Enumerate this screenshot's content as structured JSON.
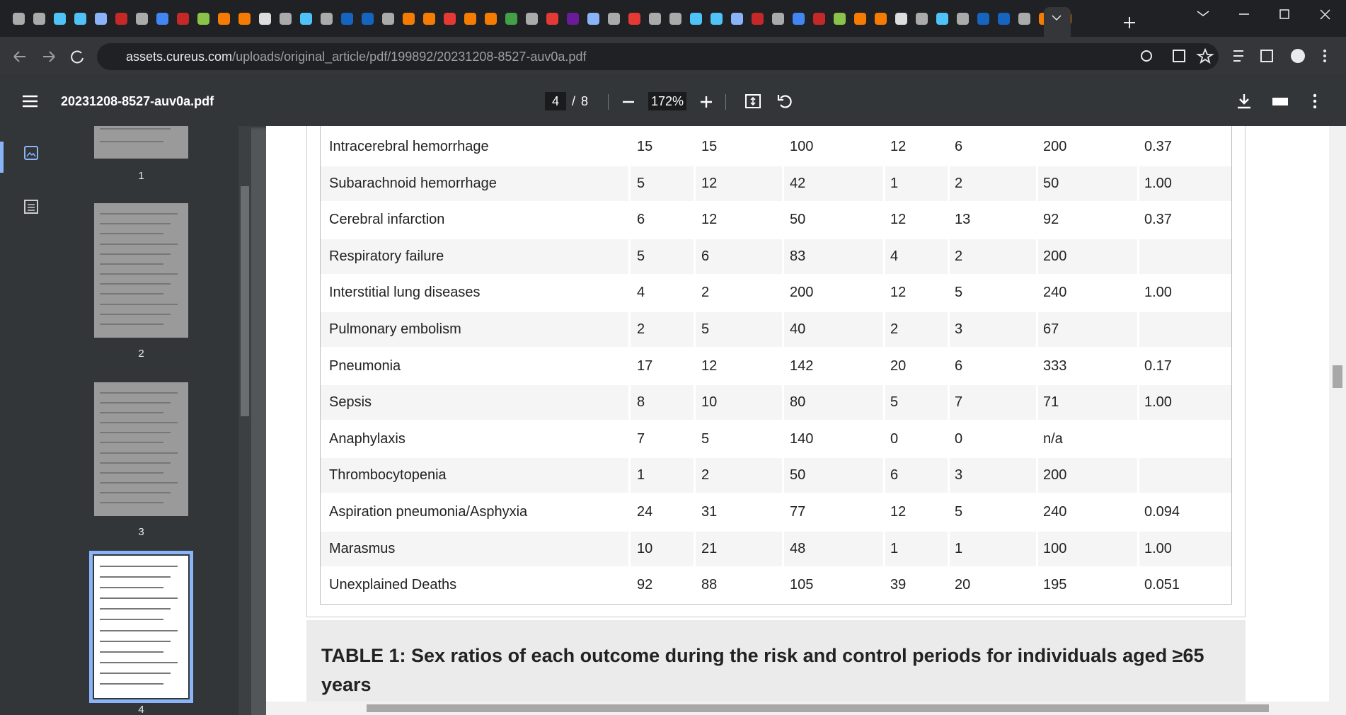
{
  "browser": {
    "url_host": "assets.cureus.com",
    "url_path": "/uploads/original_article/pdf/199892/20231208-8527-auv0a.pdf"
  },
  "viewer": {
    "file_name": "20231208-8527-auv0a.pdf",
    "page": "4",
    "page_separator": "/",
    "total_pages": "8",
    "zoom": "172%"
  },
  "thumbnails": [
    "1",
    "2",
    "3",
    "4"
  ],
  "table": {
    "rows": [
      [
        "Intracerebral hemorrhage",
        "15",
        "15",
        "100",
        "12",
        "6",
        "200",
        "0.37"
      ],
      [
        "Subarachnoid hemorrhage",
        "5",
        "12",
        "42",
        "1",
        "2",
        "50",
        "1.00"
      ],
      [
        "Cerebral infarction",
        "6",
        "12",
        "50",
        "12",
        "13",
        "92",
        "0.37"
      ],
      [
        "Respiratory failure",
        "5",
        "6",
        "83",
        "4",
        "2",
        "200",
        ""
      ],
      [
        "Interstitial lung diseases",
        "4",
        "2",
        "200",
        "12",
        "5",
        "240",
        "1.00"
      ],
      [
        "Pulmonary embolism",
        "2",
        "5",
        "40",
        "2",
        "3",
        "67",
        ""
      ],
      [
        "Pneumonia",
        "17",
        "12",
        "142",
        "20",
        "6",
        "333",
        "0.17"
      ],
      [
        "Sepsis",
        "8",
        "10",
        "80",
        "5",
        "7",
        "71",
        "1.00"
      ],
      [
        "Anaphylaxis",
        "7",
        "5",
        "140",
        "0",
        "0",
        "n/a",
        ""
      ],
      [
        "Thrombocytopenia",
        "1",
        "2",
        "50",
        "6",
        "3",
        "200",
        ""
      ],
      [
        "Aspiration pneumonia/Asphyxia",
        "24",
        "31",
        "77",
        "12",
        "5",
        "240",
        "0.094"
      ],
      [
        "Marasmus",
        "10",
        "21",
        "48",
        "1",
        "1",
        "100",
        "1.00"
      ],
      [
        "Unexplained Deaths",
        "92",
        "88",
        "105",
        "39",
        "20",
        "195",
        "0.051"
      ]
    ]
  },
  "caption": "TABLE 1: Sex ratios of each outcome during the risk and control periods for individuals aged ≥65 years"
}
